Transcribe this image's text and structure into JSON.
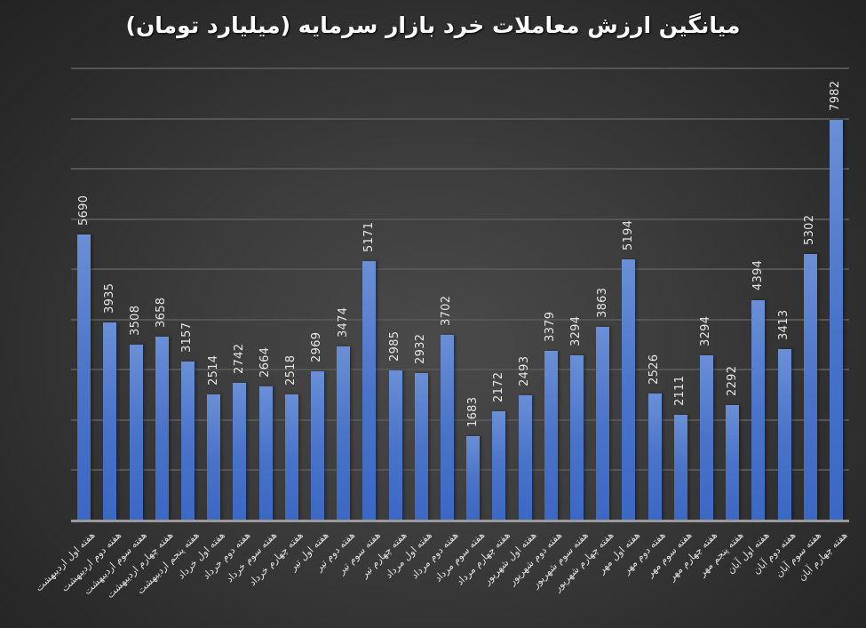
{
  "chart_data": {
    "type": "bar",
    "title": "میانگین ارزش معاملات خرد بازار سرمایه (میلیارد تومان)",
    "xlabel": "",
    "ylabel": "",
    "ylim": [
      0,
      9000
    ],
    "grid": true,
    "gridline_step": 1000,
    "legend": "none",
    "data_labels": true,
    "bar_color": "#4472C4",
    "background_color": "#3a3a3a",
    "categories": [
      "هفته اول اردیبهشت",
      "هفته دوم اردیبهشت",
      "هفته سوم اردیبهشت",
      "هفته چهارم اردیبهشت",
      "هفته پنجم اردیبهشت",
      "هفته اول خرداد",
      "هفته دوم خرداد",
      "هفته سوم خرداد",
      "هفته چهارم خرداد",
      "هفته اول تیر",
      "هفته دوم تیر",
      "هفته سوم تیر",
      "هفته چهارم تیر",
      "هفته اول مرداد",
      "هفته دوم مرداد",
      "هفته سوم مرداد",
      "هفته چهارم مرداد",
      "هفته اول شهریور",
      "هفته دوم شهریور",
      "هفته سوم شهریور",
      "هفته چهارم شهریور",
      "هفته اول مهر",
      "هفته دوم مهر",
      "هفته سوم مهر",
      "هفته چهارم مهر",
      "هفته پنجم مهر",
      "هفته اول آبان",
      "هفته دوم آبان",
      "هفته سوم آبان",
      "هفته چهارم آبان"
    ],
    "values": [
      5690,
      3935,
      3508,
      3658,
      3157,
      2514,
      2742,
      2664,
      2518,
      2969,
      3474,
      5171,
      2985,
      2932,
      3702,
      1683,
      2172,
      2493,
      3379,
      3294,
      3863,
      5194,
      2526,
      2111,
      3294,
      2292,
      4394,
      3413,
      5302,
      7982
    ]
  }
}
